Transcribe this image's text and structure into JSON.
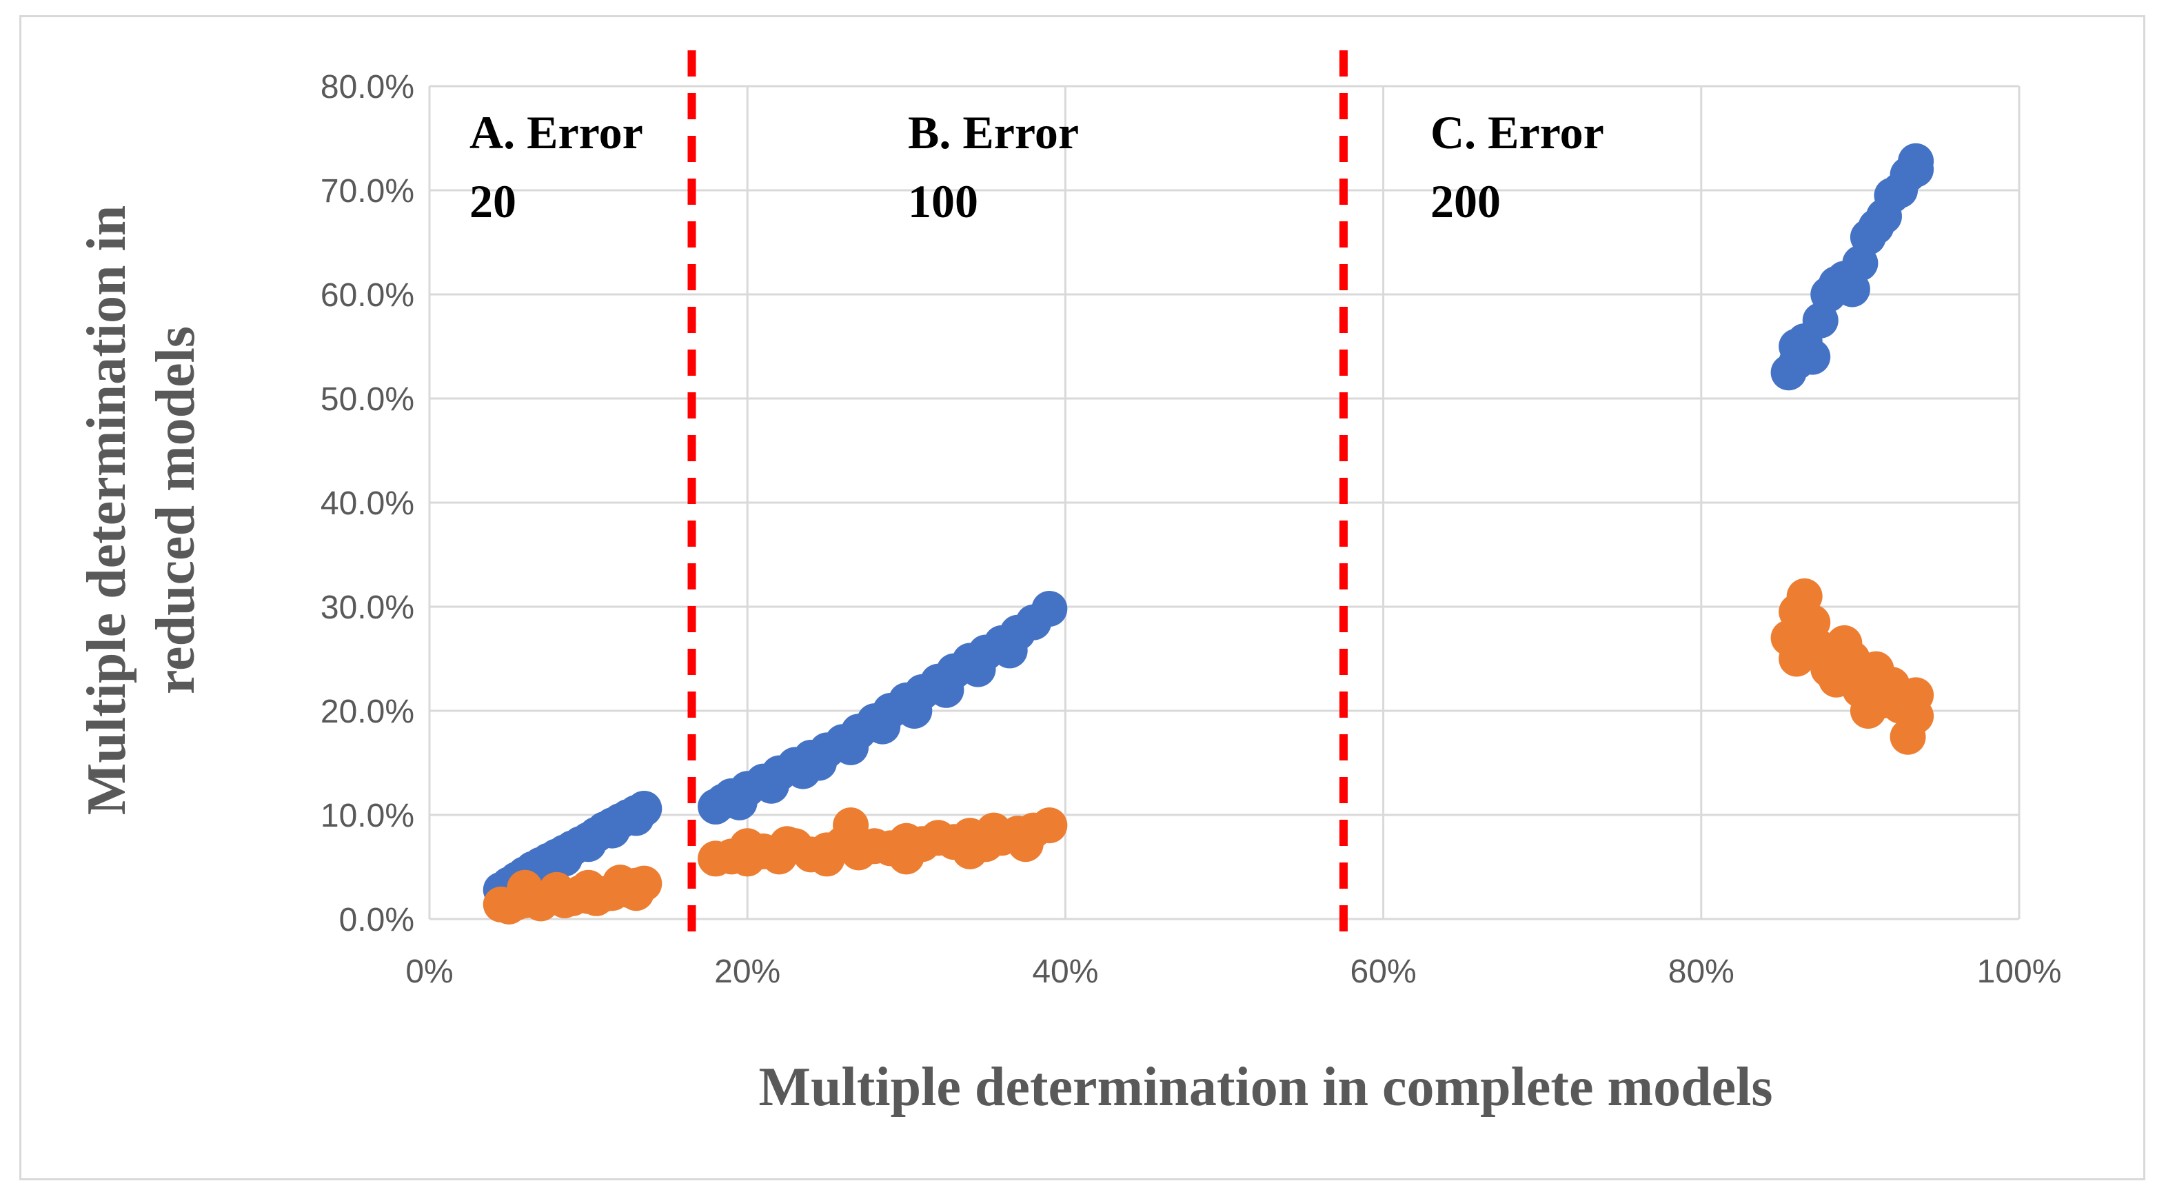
{
  "chart_data": {
    "type": "scatter",
    "xlabel": "Multiple determination in complete models",
    "ylabel": [
      "Multiple determination in",
      "reduced models"
    ],
    "xlim": [
      0,
      1
    ],
    "ylim": [
      0,
      0.8
    ],
    "x_ticks": [
      "0%",
      "20%",
      "40%",
      "60%",
      "80%",
      "100%"
    ],
    "y_ticks": [
      "0.0%",
      "10.0%",
      "20.0%",
      "30.0%",
      "40.0%",
      "50.0%",
      "60.0%",
      "70.0%",
      "80.0%"
    ],
    "grid": true,
    "legend": "none",
    "colors": {
      "series1": "#4472c4",
      "series2": "#ed7d31",
      "divider": "#ff0000",
      "grid": "#d9d9d9",
      "text": "#595959"
    },
    "dividers_x": [
      0.165,
      0.575
    ],
    "regions": [
      {
        "line1": "A. Error",
        "line2": "20"
      },
      {
        "line1": "B. Error",
        "line2": "100"
      },
      {
        "line1": "C. Error",
        "line2": "200"
      }
    ],
    "series": [
      {
        "color": "#4472c4",
        "points": [
          [
            0.045,
            0.028
          ],
          [
            0.05,
            0.033
          ],
          [
            0.055,
            0.038
          ],
          [
            0.06,
            0.043
          ],
          [
            0.065,
            0.048
          ],
          [
            0.07,
            0.052
          ],
          [
            0.075,
            0.056
          ],
          [
            0.08,
            0.06
          ],
          [
            0.085,
            0.064
          ],
          [
            0.09,
            0.068
          ],
          [
            0.095,
            0.072
          ],
          [
            0.1,
            0.076
          ],
          [
            0.105,
            0.081
          ],
          [
            0.11,
            0.086
          ],
          [
            0.115,
            0.09
          ],
          [
            0.12,
            0.094
          ],
          [
            0.125,
            0.098
          ],
          [
            0.13,
            0.102
          ],
          [
            0.135,
            0.106
          ],
          [
            0.055,
            0.032
          ],
          [
            0.07,
            0.046
          ],
          [
            0.085,
            0.058
          ],
          [
            0.1,
            0.072
          ],
          [
            0.115,
            0.085
          ],
          [
            0.13,
            0.097
          ],
          [
            0.18,
            0.108
          ],
          [
            0.185,
            0.113
          ],
          [
            0.19,
            0.118
          ],
          [
            0.2,
            0.125
          ],
          [
            0.21,
            0.132
          ],
          [
            0.22,
            0.14
          ],
          [
            0.23,
            0.148
          ],
          [
            0.24,
            0.155
          ],
          [
            0.25,
            0.162
          ],
          [
            0.26,
            0.17
          ],
          [
            0.27,
            0.18
          ],
          [
            0.28,
            0.19
          ],
          [
            0.29,
            0.2
          ],
          [
            0.3,
            0.21
          ],
          [
            0.31,
            0.218
          ],
          [
            0.32,
            0.228
          ],
          [
            0.33,
            0.238
          ],
          [
            0.34,
            0.248
          ],
          [
            0.35,
            0.256
          ],
          [
            0.36,
            0.265
          ],
          [
            0.37,
            0.275
          ],
          [
            0.38,
            0.285
          ],
          [
            0.39,
            0.298
          ],
          [
            0.195,
            0.112
          ],
          [
            0.215,
            0.128
          ],
          [
            0.235,
            0.142
          ],
          [
            0.245,
            0.15
          ],
          [
            0.265,
            0.165
          ],
          [
            0.285,
            0.185
          ],
          [
            0.305,
            0.2
          ],
          [
            0.325,
            0.22
          ],
          [
            0.345,
            0.24
          ],
          [
            0.365,
            0.258
          ],
          [
            0.855,
            0.525
          ],
          [
            0.86,
            0.535
          ],
          [
            0.86,
            0.55
          ],
          [
            0.865,
            0.555
          ],
          [
            0.87,
            0.54
          ],
          [
            0.875,
            0.575
          ],
          [
            0.88,
            0.6
          ],
          [
            0.885,
            0.61
          ],
          [
            0.89,
            0.615
          ],
          [
            0.895,
            0.605
          ],
          [
            0.9,
            0.63
          ],
          [
            0.905,
            0.655
          ],
          [
            0.91,
            0.665
          ],
          [
            0.915,
            0.675
          ],
          [
            0.92,
            0.695
          ],
          [
            0.925,
            0.7
          ],
          [
            0.93,
            0.715
          ],
          [
            0.935,
            0.72
          ],
          [
            0.935,
            0.728
          ]
        ]
      },
      {
        "color": "#ed7d31",
        "points": [
          [
            0.045,
            0.014
          ],
          [
            0.05,
            0.012
          ],
          [
            0.055,
            0.016
          ],
          [
            0.06,
            0.018
          ],
          [
            0.065,
            0.02
          ],
          [
            0.07,
            0.015
          ],
          [
            0.075,
            0.02
          ],
          [
            0.08,
            0.022
          ],
          [
            0.085,
            0.018
          ],
          [
            0.09,
            0.02
          ],
          [
            0.095,
            0.025
          ],
          [
            0.1,
            0.022
          ],
          [
            0.105,
            0.02
          ],
          [
            0.11,
            0.024
          ],
          [
            0.115,
            0.025
          ],
          [
            0.12,
            0.03
          ],
          [
            0.125,
            0.028
          ],
          [
            0.13,
            0.032
          ],
          [
            0.135,
            0.034
          ],
          [
            0.06,
            0.03
          ],
          [
            0.08,
            0.028
          ],
          [
            0.1,
            0.03
          ],
          [
            0.12,
            0.035
          ],
          [
            0.13,
            0.025
          ],
          [
            0.18,
            0.058
          ],
          [
            0.19,
            0.06
          ],
          [
            0.2,
            0.058
          ],
          [
            0.21,
            0.065
          ],
          [
            0.22,
            0.06
          ],
          [
            0.23,
            0.07
          ],
          [
            0.24,
            0.062
          ],
          [
            0.25,
            0.066
          ],
          [
            0.26,
            0.072
          ],
          [
            0.27,
            0.064
          ],
          [
            0.28,
            0.07
          ],
          [
            0.29,
            0.068
          ],
          [
            0.3,
            0.075
          ],
          [
            0.31,
            0.072
          ],
          [
            0.32,
            0.078
          ],
          [
            0.33,
            0.074
          ],
          [
            0.34,
            0.08
          ],
          [
            0.35,
            0.072
          ],
          [
            0.36,
            0.078
          ],
          [
            0.37,
            0.082
          ],
          [
            0.38,
            0.085
          ],
          [
            0.39,
            0.09
          ],
          [
            0.2,
            0.07
          ],
          [
            0.225,
            0.072
          ],
          [
            0.25,
            0.058
          ],
          [
            0.265,
            0.09
          ],
          [
            0.3,
            0.06
          ],
          [
            0.34,
            0.065
          ],
          [
            0.355,
            0.085
          ],
          [
            0.375,
            0.072
          ],
          [
            0.855,
            0.27
          ],
          [
            0.86,
            0.25
          ],
          [
            0.86,
            0.295
          ],
          [
            0.865,
            0.31
          ],
          [
            0.87,
            0.285
          ],
          [
            0.875,
            0.26
          ],
          [
            0.88,
            0.24
          ],
          [
            0.885,
            0.23
          ],
          [
            0.89,
            0.265
          ],
          [
            0.895,
            0.25
          ],
          [
            0.9,
            0.22
          ],
          [
            0.905,
            0.2
          ],
          [
            0.91,
            0.24
          ],
          [
            0.915,
            0.21
          ],
          [
            0.92,
            0.225
          ],
          [
            0.925,
            0.205
          ],
          [
            0.93,
            0.175
          ],
          [
            0.935,
            0.215
          ],
          [
            0.935,
            0.195
          ]
        ]
      }
    ]
  }
}
